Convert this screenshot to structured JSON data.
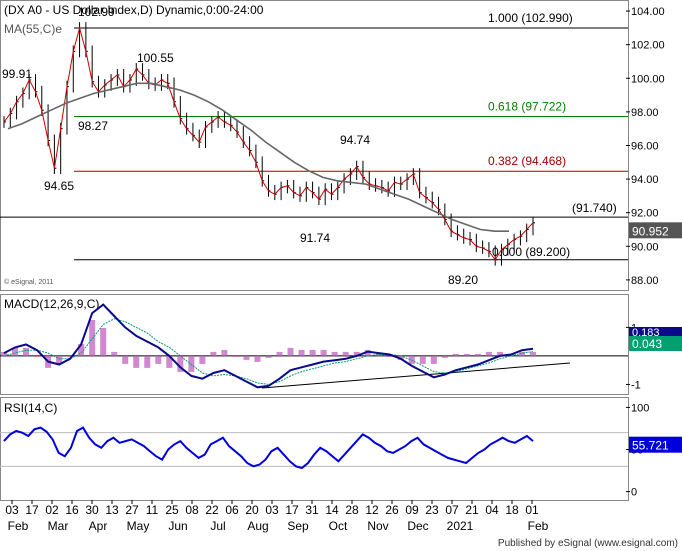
{
  "header": {
    "title": "(DX A0 - US Dollar Index,D) Dynamic,0:00-24:00",
    "ma_label": "MA(55,C)e"
  },
  "watermark": "© eSignal, 2011",
  "footer": "Published by eSignal (www.esignal.com)",
  "chart_data": [
    {
      "type": "line",
      "name": "price",
      "title": "(DX A0 - US Dollar Index,D) Dynamic,0:00-24:00",
      "series": [
        {
          "name": "DX A0 close",
          "values": [
            97.4,
            97.9,
            98.6,
            99.1,
            99.9,
            99.2,
            98.1,
            96.3,
            94.65,
            97.0,
            99.5,
            101.6,
            102.99,
            101.6,
            99.8,
            99.2,
            99.6,
            99.9,
            100.2,
            99.5,
            99.9,
            100.55,
            100.2,
            99.7,
            99.6,
            99.9,
            99.7,
            98.6,
            97.6,
            97.0,
            96.6,
            96.2,
            97.1,
            97.4,
            97.7,
            97.4,
            97.2,
            96.8,
            96.2,
            95.7,
            95.0,
            93.9,
            93.3,
            93.1,
            93.5,
            93.6,
            93.2,
            93.0,
            93.5,
            93.2,
            92.8,
            93.4,
            93.1,
            93.5,
            94.0,
            94.3,
            94.74,
            94.1,
            93.7,
            93.6,
            93.5,
            93.3,
            93.8,
            93.7,
            94.0,
            94.3,
            93.2,
            92.9,
            92.6,
            92.2,
            91.6,
            90.9,
            90.7,
            90.5,
            90.4,
            90.0,
            89.9,
            89.7,
            89.2,
            89.8,
            90.1,
            90.4,
            90.6,
            91.0,
            91.4
          ]
        },
        {
          "name": "MA(55,C)e",
          "values": [
            97.0,
            97.3,
            97.7,
            98.1,
            98.5,
            98.8,
            99.1,
            99.3,
            99.5,
            99.7,
            99.7,
            99.5,
            99.3,
            99.0,
            98.6,
            98.1,
            97.5,
            96.9,
            96.2,
            95.6,
            95.0,
            94.5,
            94.1,
            93.9,
            93.8,
            93.7,
            93.4,
            93.1,
            92.8,
            92.4,
            92.0,
            91.6,
            91.3,
            91.0,
            90.9,
            90.9
          ]
        }
      ],
      "annotations": [
        "99.91",
        "102.99",
        "100.55",
        "98.27",
        "94.65",
        "94.74",
        "91.74",
        "89.20"
      ],
      "ylim": [
        87.4,
        104.3
      ],
      "y_ticks": [
        "104.00",
        "102.00",
        "100.00",
        "98.00",
        "96.00",
        "94.00",
        "92.00",
        "90.00",
        "88.00"
      ],
      "fibonacci": [
        {
          "label": "1.000 (102.990)",
          "value": 102.99,
          "color": "#000000"
        },
        {
          "label": "0.618 (97.722)",
          "value": 97.722,
          "color": "#008000"
        },
        {
          "label": "0.382 (94.468)",
          "value": 94.468,
          "color": "#a00000"
        },
        {
          "label": "0.000 (89.200)",
          "value": 89.2,
          "color": "#000000"
        }
      ],
      "support_line": {
        "label": "(91.740)",
        "value": 91.74
      },
      "last_value": "90.952"
    },
    {
      "type": "line",
      "name": "MACD",
      "title": "MACD(12,26,9,C)",
      "series": [
        {
          "name": "MACD",
          "values": [
            0.1,
            0.3,
            0.4,
            0.2,
            -0.2,
            -0.3,
            -0.1,
            0.4,
            1.5,
            1.8,
            1.4,
            1.0,
            0.7,
            0.5,
            0.3,
            0.0,
            -0.4,
            -0.7,
            -0.8,
            -0.6,
            -0.5,
            -0.7,
            -0.9,
            -1.1,
            -1.05,
            -0.8,
            -0.5,
            -0.4,
            -0.3,
            -0.2,
            -0.15,
            -0.1,
            0.0,
            0.15,
            0.1,
            0.05,
            -0.1,
            -0.35,
            -0.55,
            -0.75,
            -0.65,
            -0.5,
            -0.4,
            -0.3,
            -0.15,
            0.0,
            0.05,
            0.2,
            0.25
          ]
        },
        {
          "name": "Signal",
          "values": [
            0.0,
            0.1,
            0.2,
            0.2,
            0.1,
            -0.1,
            -0.1,
            0.1,
            0.6,
            1.1,
            1.3,
            1.2,
            1.0,
            0.8,
            0.5,
            0.3,
            0.0,
            -0.3,
            -0.6,
            -0.7,
            -0.65,
            -0.7,
            -0.8,
            -0.95,
            -1.0,
            -0.9,
            -0.7,
            -0.55,
            -0.45,
            -0.35,
            -0.25,
            -0.2,
            -0.1,
            0.0,
            0.05,
            0.05,
            0.0,
            -0.15,
            -0.35,
            -0.55,
            -0.6,
            -0.55,
            -0.45,
            -0.35,
            -0.25,
            -0.1,
            0.0,
            0.1,
            0.15
          ]
        }
      ],
      "ylim": [
        -1.3,
        2.1
      ],
      "y_ticks": [
        "1",
        "-1"
      ],
      "last_values": [
        "0.183",
        "0.043"
      ]
    },
    {
      "type": "line",
      "name": "RSI",
      "title": "RSI(14,C)",
      "series": [
        {
          "name": "RSI",
          "values": [
            60,
            68,
            72,
            70,
            66,
            74,
            76,
            71,
            62,
            46,
            42,
            52,
            72,
            76,
            64,
            56,
            52,
            60,
            64,
            58,
            60,
            62,
            58,
            54,
            48,
            42,
            38,
            50,
            56,
            60,
            52,
            46,
            40,
            44,
            56,
            60,
            64,
            54,
            48,
            42,
            34,
            30,
            32,
            38,
            48,
            52,
            44,
            36,
            30,
            28,
            34,
            44,
            52,
            48,
            42,
            36,
            44,
            52,
            60,
            68,
            64,
            58,
            54,
            48,
            46,
            50,
            54,
            60,
            64,
            56,
            52,
            48,
            44,
            40,
            38,
            36,
            34,
            40,
            46,
            50,
            56,
            60,
            64,
            60,
            58,
            62,
            66,
            60
          ]
        }
      ],
      "ylim": [
        -10,
        110
      ],
      "y_ticks": [
        "100",
        "50",
        "0"
      ],
      "last_value": "55.721"
    }
  ],
  "x_axis": {
    "day_labels": [
      "03",
      "17",
      "02",
      "16",
      "30",
      "13",
      "27",
      "11",
      "25",
      "08",
      "22",
      "06",
      "20",
      "03",
      "17",
      "31",
      "14",
      "28",
      "12",
      "26",
      "09",
      "23",
      "07",
      "21",
      "04",
      "18",
      "01"
    ],
    "month_labels": [
      "Feb",
      "Mar",
      "Apr",
      "May",
      "Jun",
      "Jul",
      "Aug",
      "Sep",
      "Oct",
      "Nov",
      "Dec",
      "2021",
      "Feb"
    ]
  }
}
